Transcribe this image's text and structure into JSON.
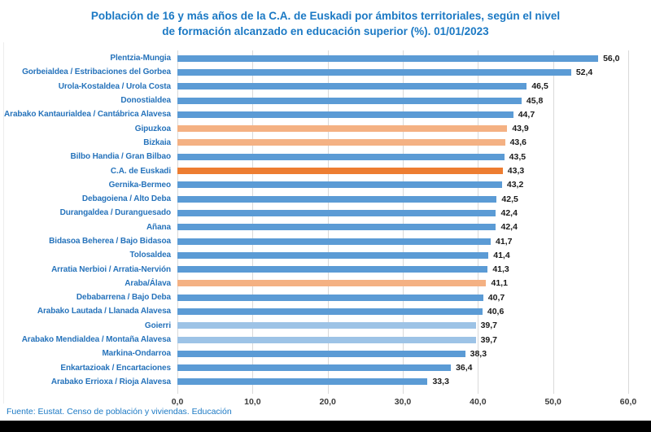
{
  "title": {
    "line1": "Población de 16 y más años de la C.A. de Euskadi por ámbitos territoriales, según el nivel",
    "line2": "de formación alcanzado en educación superior (%). 01/01/2023"
  },
  "footer": {
    "source": "Fuente: Eustat. Censo de población y viviendas. Educación"
  },
  "colors": {
    "title_blue": "#1b79c4",
    "label_blue": "#2673bb",
    "bar_blue": "#5b9bd5",
    "bar_light_blue": "#9dc3e6",
    "bar_light_orange": "#f4b183",
    "bar_dark_orange": "#ed7d31",
    "gridline": "#d9d9d9",
    "value_text": "#1a1a1a",
    "axis_text": "#3b3b3b"
  },
  "chart_data": {
    "type": "bar",
    "orientation": "horizontal",
    "title": "Población de 16 y más años de la C.A. de Euskadi por ámbitos territoriales, según el nivel de formación alcanzado en educación superior (%). 01/01/2023",
    "xlabel": "",
    "ylabel": "",
    "xlim": [
      0,
      60
    ],
    "grid": "vertical",
    "legend": "none",
    "x_ticks": [
      "0,0",
      "10,0",
      "20,0",
      "30,0",
      "40,0",
      "50,0",
      "60,0"
    ],
    "categories": [
      "Plentzia-Mungia",
      "Gorbeialdea / Estribaciones del Gorbea",
      "Urola-Kostaldea / Urola Costa",
      "Donostialdea",
      "Arabako Kantaurialdea / Cantábrica Alavesa",
      "Gipuzkoa",
      "Bizkaia",
      "Bilbo Handia / Gran Bilbao",
      "C.A. de Euskadi",
      "Gernika-Bermeo",
      "Debagoiena / Alto Deba",
      "Durangaldea / Duranguesado",
      "Añana",
      "Bidasoa Beherea / Bajo Bidasoa",
      "Tolosaldea",
      "Arratia Nerbioi / Arratia-Nervión",
      "Araba/Álava",
      "Debabarrena / Bajo Deba",
      "Arabako Lautada / Llanada Alavesa",
      "Goierri",
      "Arabako Mendialdea / Montaña Alavesa",
      "Markina-Ondarroa",
      "Enkartazioak / Encartaciones",
      "Arabako Errioxa / Rioja Alavesa"
    ],
    "values": [
      56.0,
      52.4,
      46.5,
      45.8,
      44.7,
      43.9,
      43.6,
      43.5,
      43.3,
      43.2,
      42.5,
      42.4,
      42.4,
      41.7,
      41.4,
      41.3,
      41.1,
      40.7,
      40.6,
      39.7,
      39.7,
      38.3,
      36.4,
      33.3
    ],
    "value_labels": [
      "56,0",
      "52,4",
      "46,5",
      "45,8",
      "44,7",
      "43,9",
      "43,6",
      "43,5",
      "43,3",
      "43,2",
      "42,5",
      "42,4",
      "42,4",
      "41,7",
      "41,4",
      "41,3",
      "41,1",
      "40,7",
      "40,6",
      "39,7",
      "39,7",
      "38,3",
      "36,4",
      "33,3"
    ],
    "bar_colors": [
      "#5b9bd5",
      "#5b9bd5",
      "#5b9bd5",
      "#5b9bd5",
      "#5b9bd5",
      "#f4b183",
      "#f4b183",
      "#5b9bd5",
      "#ed7d31",
      "#5b9bd5",
      "#5b9bd5",
      "#5b9bd5",
      "#5b9bd5",
      "#5b9bd5",
      "#5b9bd5",
      "#5b9bd5",
      "#f4b183",
      "#5b9bd5",
      "#5b9bd5",
      "#9dc3e6",
      "#9dc3e6",
      "#5b9bd5",
      "#5b9bd5",
      "#5b9bd5"
    ]
  }
}
